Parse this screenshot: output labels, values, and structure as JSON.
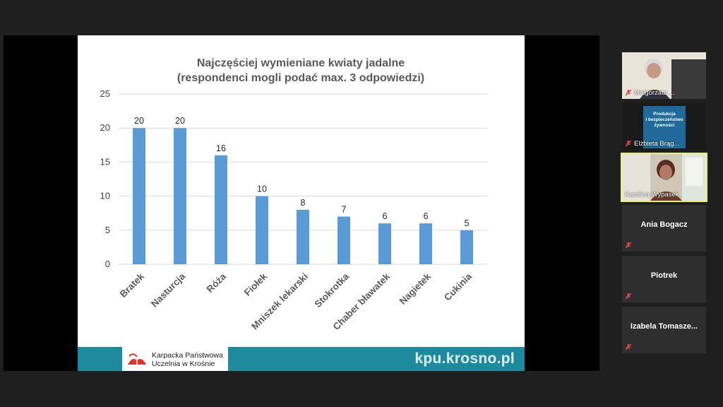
{
  "chart_data": {
    "type": "bar",
    "title": "Najczęściej wymieniane kwiaty jadalne",
    "subtitle": "(respondenci mogli podać max. 3 odpowiedzi)",
    "categories": [
      "Bratek",
      "Nasturcja",
      "Róża",
      "Fiołek",
      "Mniszek lekarski",
      "Stokrotka",
      "Chaber bławatek",
      "Nagietek",
      "Cukinia"
    ],
    "values": [
      20,
      20,
      16,
      10,
      8,
      7,
      6,
      6,
      5
    ],
    "ylim": [
      0,
      25
    ],
    "yticks": [
      0,
      5,
      10,
      15,
      20,
      25
    ],
    "grid": true,
    "bar_color": "#5b9bd5",
    "grid_color": "#d9d9d9"
  },
  "slide": {
    "logo_line1": "Karpacka Państwowa",
    "logo_line2": "Uczelnia w Krośnie",
    "url": "kpu.krosno.pl",
    "footer_color": "#1e8a9e"
  },
  "participants": [
    {
      "name": "Małgorzata ...",
      "muted": true,
      "video": true
    },
    {
      "name": "Elżbieta Brąg...",
      "muted": true,
      "video": true,
      "screen_text": [
        "Produkcja",
        "i bezpieczeństwo",
        "żywności"
      ]
    },
    {
      "name": "Karolina Wypasek",
      "muted": false,
      "video": true,
      "active": true
    },
    {
      "name": "Ania Bogacz",
      "muted": true,
      "video": false
    },
    {
      "name": "Piotrek",
      "muted": true,
      "video": false
    },
    {
      "name": "Izabela  Tomasze...",
      "muted": true,
      "video": false
    }
  ]
}
